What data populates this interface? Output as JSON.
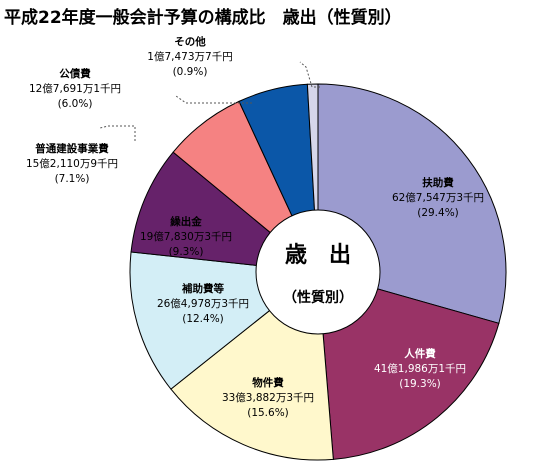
{
  "chart_data": {
    "type": "pie",
    "title": "平成22年度一般会計予算の構成比　歳出（性質別）",
    "center_label": "歳　出",
    "center_sublabel": "（性質別）",
    "slices": [
      {
        "name": "扶助費",
        "amount": "62億7,547万3千円",
        "percent_label": "(29.4%)",
        "value": 29.4,
        "color": "#9b9bcf"
      },
      {
        "name": "人件費",
        "amount": "41億1,986万1千円",
        "percent_label": "(19.3%)",
        "value": 19.3,
        "color": "#993366"
      },
      {
        "name": "物件費",
        "amount": "33億3,882万3千円",
        "percent_label": "(15.6%)",
        "value": 15.6,
        "color": "#fff8cc"
      },
      {
        "name": "補助費等",
        "amount": "26億4,978万3千円",
        "percent_label": "(12.4%)",
        "value": 12.4,
        "color": "#d3eef6"
      },
      {
        "name": "繰出金",
        "amount": "19億7,830万3千円",
        "percent_label": "(9.3%)",
        "value": 9.3,
        "color": "#66226a"
      },
      {
        "name": "普通建設事業費",
        "amount": "15億2,110万9千円",
        "percent_label": "(7.1%)",
        "value": 7.1,
        "color": "#f58282"
      },
      {
        "name": "公債費",
        "amount": "12億7,691万1千円",
        "percent_label": "(6.0%)",
        "value": 6.0,
        "color": "#0b57a8"
      },
      {
        "name": "その他",
        "amount": "1億7,473万7千円",
        "percent_label": "(0.9%)",
        "value": 0.9,
        "color": "#d6d6ea"
      }
    ]
  }
}
